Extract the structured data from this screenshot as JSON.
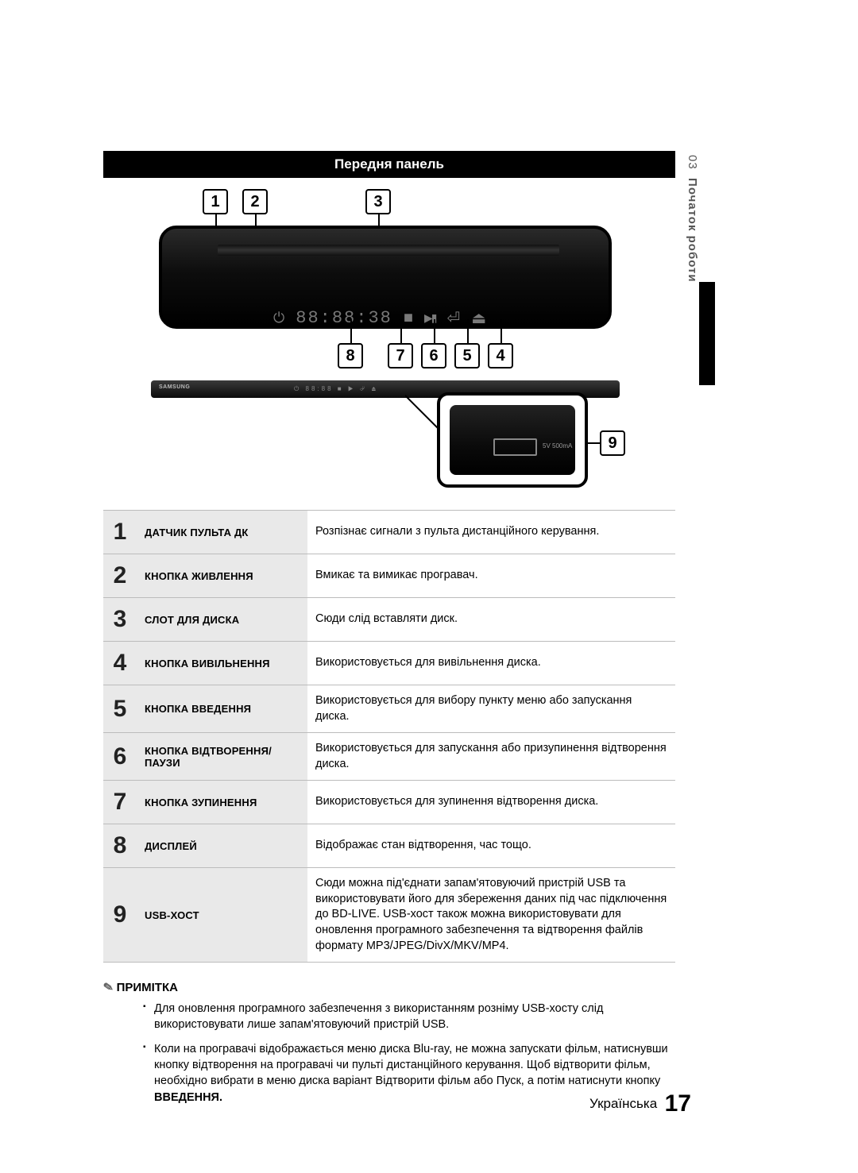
{
  "side_tab": {
    "chapter": "03",
    "label": "Початок роботи"
  },
  "header": "Передня панель",
  "diagram": {
    "top_callouts": [
      "1",
      "2",
      "3"
    ],
    "mid_callouts": [
      "8",
      "7",
      "6",
      "5",
      "4"
    ],
    "right_callout": "9",
    "display_text": "88:88:38",
    "icons": {
      "power": "⏻",
      "stop": "■",
      "playpause": "▶▮▮",
      "enter": "⏎",
      "eject": "⏏"
    }
  },
  "rows": [
    {
      "n": "1",
      "label": "ДАТЧИК ПУЛЬТА ДК",
      "desc": "Розпізнає сигнали з пульта дистанційного керування."
    },
    {
      "n": "2",
      "label": "КНОПКА ЖИВЛЕННЯ",
      "desc": "Вмикає та вимикає програвач."
    },
    {
      "n": "3",
      "label": "СЛОТ ДЛЯ ДИСКА",
      "desc": "Сюди слід вставляти диск."
    },
    {
      "n": "4",
      "label": "КНОПКА ВИВІЛЬНЕННЯ",
      "desc": "Використовується для вивільнення диска."
    },
    {
      "n": "5",
      "label": "КНОПКА ВВЕДЕННЯ",
      "desc": "Використовується для вибору пункту меню або запускання диска."
    },
    {
      "n": "6",
      "label": "КНОПКА ВІДТВОРЕННЯ/ПАУЗИ",
      "desc": "Використовується для запускання або призупинення відтворення диска."
    },
    {
      "n": "7",
      "label": "КНОПКА ЗУПИНЕННЯ",
      "desc": "Використовується для зупинення відтворення диска."
    },
    {
      "n": "8",
      "label": "ДИСПЛЕЙ",
      "desc": "Відображає стан відтворення, час тощо."
    },
    {
      "n": "9",
      "label": "USB-ХОСТ",
      "desc": "Сюди можна під'єднати запам'ятовуючий пристрій USB та використовувати його для збереження даних під час підключення до BD-LIVE. USB-хост також можна використовувати для оновлення програмного забезпечення та відтворення файлів формату MP3/JPEG/DivX/MKV/MP4."
    }
  ],
  "note": {
    "title": "ПРИМІТКА",
    "items": [
      "Для оновлення програмного забезпечення з використанням розніму USB-хосту слід використовувати лише запам'ятовуючий пристрій USB.",
      "Коли на програвачі відображається меню диска Blu-ray, не можна запускати фільм, натиснувши кнопку відтворення на програвачі чи пульті дистанційного керування. Щоб відтворити фільм, необхідно вибрати в меню диска варіант Відтворити фільм або Пуск, а потім натиснути кнопку "
    ],
    "item2_bold": "ВВЕДЕННЯ."
  },
  "footer": {
    "lang": "Українська",
    "page": "17"
  }
}
